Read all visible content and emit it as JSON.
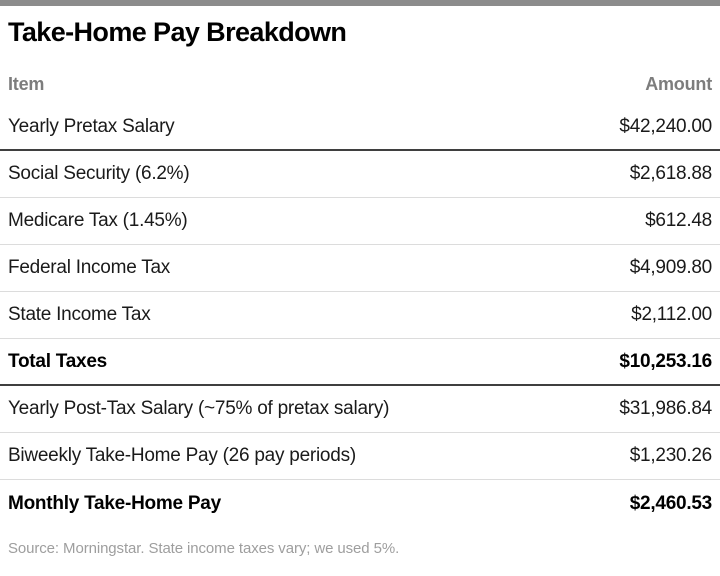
{
  "title": "Take-Home Pay Breakdown",
  "columns": {
    "item": "Item",
    "amount": "Amount"
  },
  "rows": [
    {
      "label": "Yearly Pretax Salary",
      "amount": "$42,240.00"
    },
    {
      "label": "Social Security (6.2%)",
      "amount": "$2,618.88"
    },
    {
      "label": "Medicare Tax (1.45%)",
      "amount": "$612.48"
    },
    {
      "label": "Federal Income Tax",
      "amount": "$4,909.80"
    },
    {
      "label": "State Income Tax",
      "amount": "$2,112.00"
    },
    {
      "label": "Total Taxes",
      "amount": "$10,253.16"
    },
    {
      "label": "Yearly Post-Tax Salary (~75% of pretax salary)",
      "amount": "$31,986.84"
    },
    {
      "label": "Biweekly Take-Home Pay (26 pay periods)",
      "amount": "$1,230.26"
    },
    {
      "label": "Monthly Take-Home Pay",
      "amount": "$2,460.53"
    }
  ],
  "source": "Source: Morningstar. State income taxes vary; we used 5%.",
  "colors": {
    "accent_bar": "#8c8c8c",
    "header_text": "#7d7d7d",
    "dark_rule": "#3f3f3f",
    "light_rule": "#dcdcdc",
    "source_text": "#9e9e9e",
    "body_text": "#1a1a1a"
  },
  "chart_data": {
    "type": "table",
    "title": "Take-Home Pay Breakdown",
    "columns": [
      "Item",
      "Amount"
    ],
    "rows": [
      {
        "item": "Yearly Pretax Salary",
        "amount": 42240.0,
        "emphasis": false
      },
      {
        "item": "Social Security (6.2%)",
        "amount": 2618.88,
        "emphasis": false
      },
      {
        "item": "Medicare Tax (1.45%)",
        "amount": 612.48,
        "emphasis": false
      },
      {
        "item": "Federal Income Tax",
        "amount": 4909.8,
        "emphasis": false
      },
      {
        "item": "State Income Tax",
        "amount": 2112.0,
        "emphasis": false
      },
      {
        "item": "Total Taxes",
        "amount": 10253.16,
        "emphasis": true
      },
      {
        "item": "Yearly Post-Tax Salary (~75% of pretax salary)",
        "amount": 31986.84,
        "emphasis": false
      },
      {
        "item": "Biweekly Take-Home Pay (26 pay periods)",
        "amount": 1230.26,
        "emphasis": false
      },
      {
        "item": "Monthly Take-Home Pay",
        "amount": 2460.53,
        "emphasis": true
      }
    ],
    "footnote": "Source: Morningstar. State income taxes vary; we used 5%."
  }
}
